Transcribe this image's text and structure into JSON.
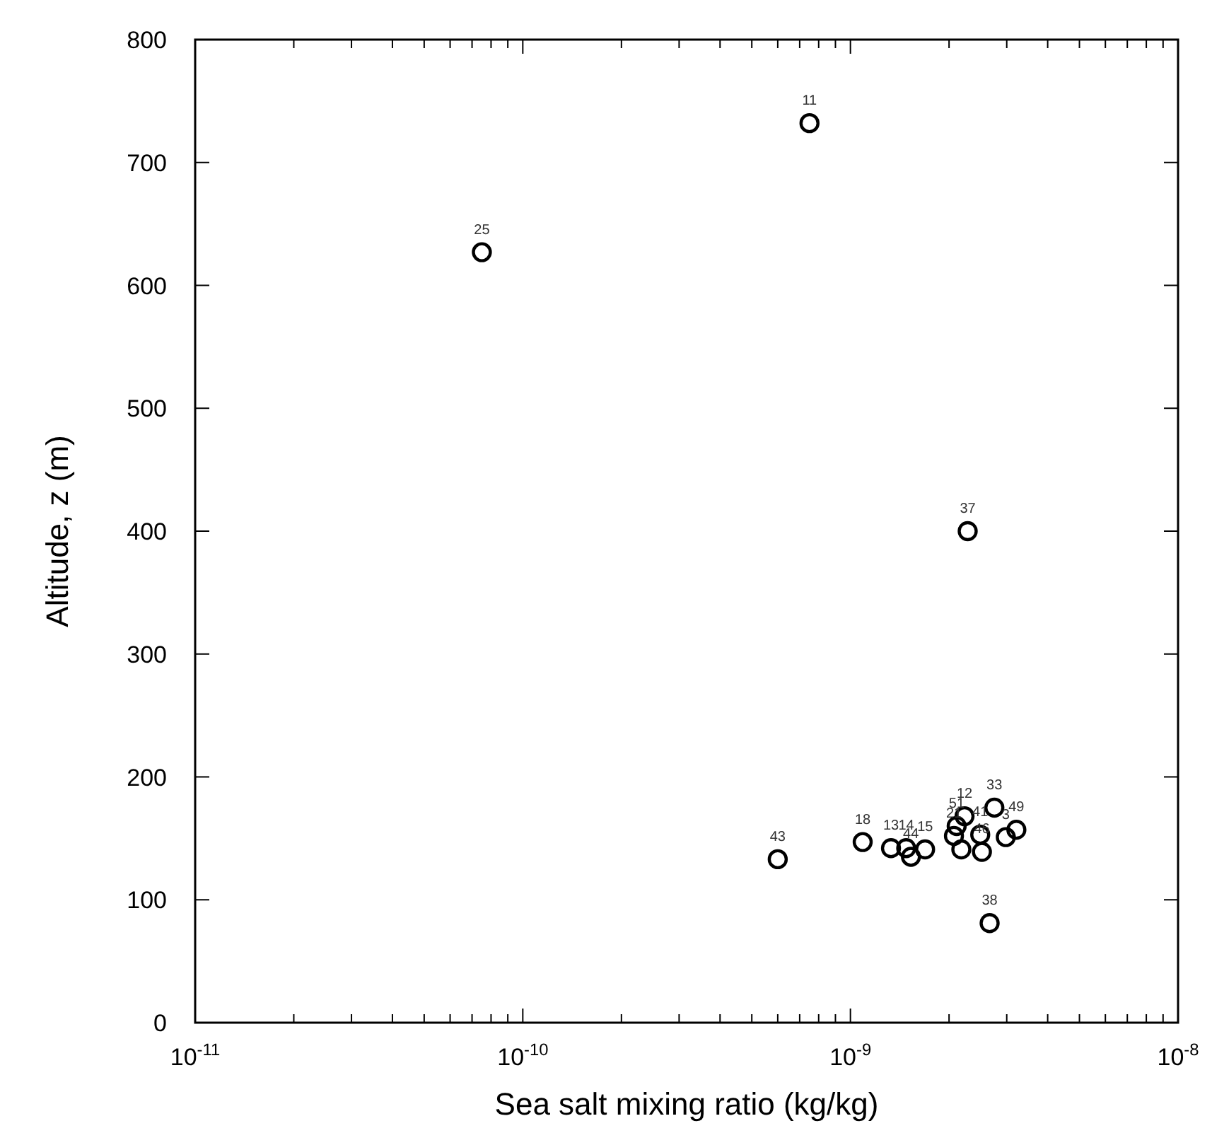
{
  "chart_data": {
    "type": "scatter",
    "xlabel": "Sea salt mixing ratio (kg/kg)",
    "ylabel": "Altitude, z (m)",
    "log": "x",
    "marker": "circle",
    "grid": false,
    "xlim": [
      1e-11,
      1e-08
    ],
    "ylim": [
      0,
      800
    ],
    "xticks": [
      {
        "value": 1e-11,
        "label": "10$^{-11}$"
      },
      {
        "value": 2e-11,
        "label": null
      },
      {
        "value": 3e-11,
        "label": null
      },
      {
        "value": 4e-11,
        "label": null
      },
      {
        "value": 5e-11,
        "label": null
      },
      {
        "value": 6e-11,
        "label": null
      },
      {
        "value": 7e-11,
        "label": null
      },
      {
        "value": 8e-11,
        "label": null
      },
      {
        "value": 9e-11,
        "label": null
      },
      {
        "value": 1e-10,
        "label": "10$^{-10}$"
      },
      {
        "value": 2e-10,
        "label": null
      },
      {
        "value": 3e-10,
        "label": null
      },
      {
        "value": 4e-10,
        "label": null
      },
      {
        "value": 5e-10,
        "label": null
      },
      {
        "value": 6e-10,
        "label": null
      },
      {
        "value": 7e-10,
        "label": null
      },
      {
        "value": 8e-10,
        "label": null
      },
      {
        "value": 9e-10,
        "label": null
      },
      {
        "value": 1e-09,
        "label": "10$^{-9}$"
      },
      {
        "value": 2e-09,
        "label": null
      },
      {
        "value": 3e-09,
        "label": null
      },
      {
        "value": 4e-09,
        "label": null
      },
      {
        "value": 5e-09,
        "label": null
      },
      {
        "value": 6e-09,
        "label": null
      },
      {
        "value": 7e-09,
        "label": null
      },
      {
        "value": 8e-09,
        "label": null
      },
      {
        "value": 9e-09,
        "label": null
      },
      {
        "value": 1e-08,
        "label": "10$^{-8}$"
      }
    ],
    "yticks": [
      0,
      100,
      200,
      300,
      400,
      500,
      600,
      700,
      800
    ],
    "series": [
      {
        "color": "#000000",
        "x": [
          7.5e-11,
          7.5e-10,
          2.28e-09,
          6e-10,
          1.09e-09,
          1.33e-09,
          1.48e-09,
          1.53e-09,
          1.69e-09,
          2.07e-09,
          2.11e-09,
          2.18e-09,
          2.23e-09,
          2.49e-09,
          2.52e-09,
          2.75e-09,
          2.98e-09,
          3.21e-09,
          2.66e-09
        ],
        "values": [
          627,
          732,
          400,
          133,
          147,
          142,
          142,
          135,
          141,
          152,
          160,
          141,
          168,
          153,
          139,
          175,
          151,
          157,
          81
        ]
      }
    ],
    "annotations": [
      {
        "text": "25",
        "x": 7.5e-11,
        "y": 627
      },
      {
        "text": "11",
        "x": 7.5e-10,
        "y": 732
      },
      {
        "text": "37",
        "x": 2.28e-09,
        "y": 400
      },
      {
        "text": "43",
        "x": 6e-10,
        "y": 133
      },
      {
        "text": "18",
        "x": 1.09e-09,
        "y": 147
      },
      {
        "text": "13",
        "x": 1.33e-09,
        "y": 142
      },
      {
        "text": "14",
        "x": 1.48e-09,
        "y": 142
      },
      {
        "text": "44",
        "x": 1.53e-09,
        "y": 135
      },
      {
        "text": "15",
        "x": 1.69e-09,
        "y": 141
      },
      {
        "text": "21",
        "x": 2.07e-09,
        "y": 152
      },
      {
        "text": "51",
        "x": 2.11e-09,
        "y": 160
      },
      {
        "text": "12",
        "x": 2.23e-09,
        "y": 168
      },
      {
        "text": "41",
        "x": 2.49e-09,
        "y": 153
      },
      {
        "text": "46",
        "x": 2.52e-09,
        "y": 139
      },
      {
        "text": "33",
        "x": 2.75e-09,
        "y": 175
      },
      {
        "text": "3",
        "x": 2.98e-09,
        "y": 151
      },
      {
        "text": "49",
        "x": 3.21e-09,
        "y": 157
      },
      {
        "text": "38",
        "x": 2.66e-09,
        "y": 81
      }
    ]
  }
}
